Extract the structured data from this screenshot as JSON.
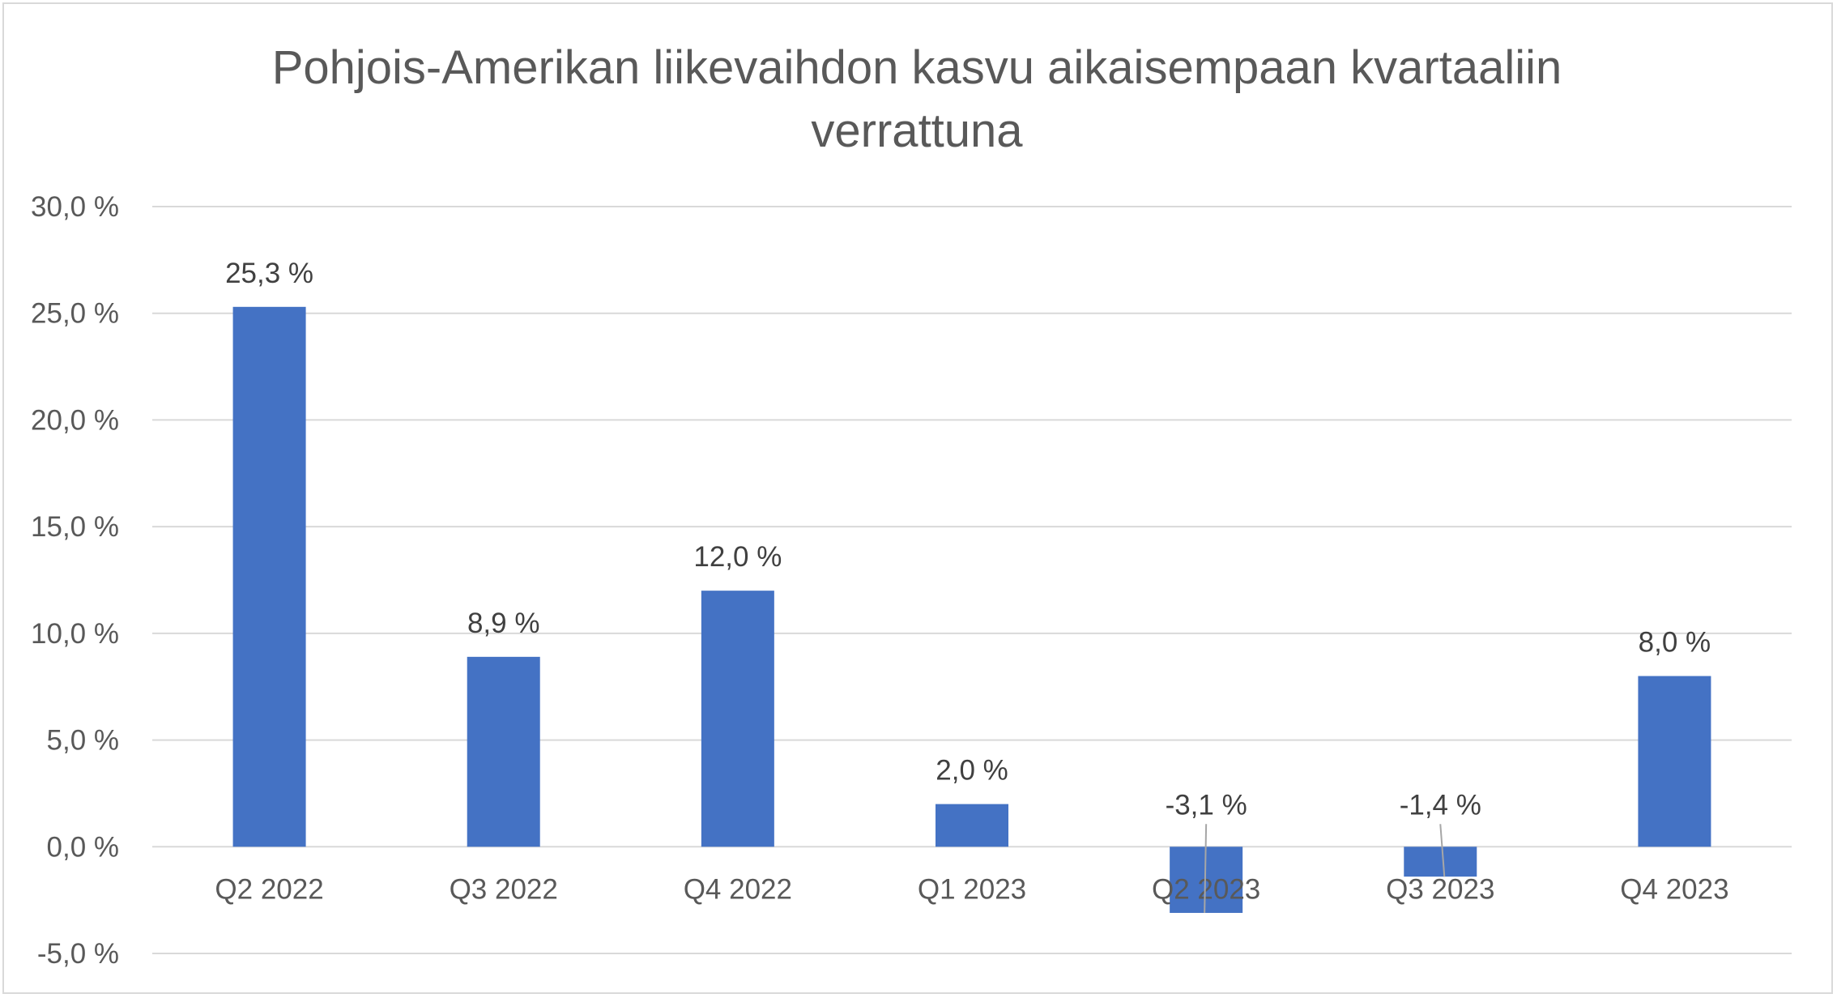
{
  "chart_data": {
    "type": "bar",
    "title_lines": [
      "Pohjois-Amerikan liikevaihdon kasvu aikaisempaan kvartaaliin",
      "verrattuna"
    ],
    "categories": [
      "Q2 2022",
      "Q3 2022",
      "Q4 2022",
      "Q1 2023",
      "Q2 2023",
      "Q3 2023",
      "Q4 2023"
    ],
    "values": [
      25.3,
      8.9,
      12.0,
      2.0,
      -3.1,
      -1.4,
      8.0
    ],
    "data_labels": [
      "25,3 %",
      "8,9 %",
      "12,0 %",
      "2,0 %",
      "-3,1 %",
      "-1,4 %",
      "8,0 %"
    ],
    "ylim": [
      -5,
      30
    ],
    "yticks": [
      30,
      25,
      20,
      15,
      10,
      5,
      0,
      -5
    ],
    "ytick_labels": [
      "30,0 %",
      "25,0 %",
      "20,0 %",
      "15,0 %",
      "10,0 %",
      "5,0 %",
      "0,0 %",
      "-5,0 %"
    ],
    "xlabel": "",
    "ylabel": "",
    "grid": true,
    "legend": "none",
    "colors": {
      "bar": "#4472C4",
      "grid": "#d9d9d9",
      "axis_text": "#595959",
      "title": "#595959",
      "label": "#404040",
      "leader": "#a6a6a6"
    }
  }
}
